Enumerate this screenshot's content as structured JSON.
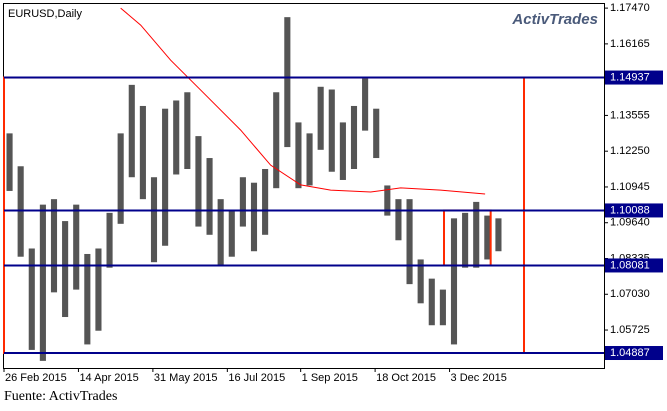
{
  "chart_data": {
    "type": "ohlc",
    "title": "EURUSD,Daily",
    "logo": "ActivTrades",
    "source": "Fuente: ActivTrades",
    "xlim": [
      0,
      54
    ],
    "ylim": [
      1.0434,
      1.1762
    ],
    "xticks": [
      {
        "value": 0,
        "label": "26 Feb 2015"
      },
      {
        "value": 6.7,
        "label": "14 Apr 2015"
      },
      {
        "value": 13.4,
        "label": "31 May 2015"
      },
      {
        "value": 20.1,
        "label": "16 Jul 2015"
      },
      {
        "value": 26.7,
        "label": "1 Sep 2015"
      },
      {
        "value": 33.4,
        "label": "18 Oct 2015"
      },
      {
        "value": 40.1,
        "label": "3 Dec 2015"
      }
    ],
    "yticks": [
      {
        "value": 1.1747,
        "label": "1.17470"
      },
      1.16165,
      1.13555,
      {
        "value": 1.1225,
        "label": "1.12250"
      },
      1.10945,
      {
        "value": 1.0964,
        "label": "1.09640"
      },
      1.08335,
      {
        "value": 1.0703,
        "label": "1.07030"
      },
      1.05725
    ],
    "bars": {
      "color": "#555555",
      "high": [
        1.129,
        1.117,
        1.087,
        1.103,
        1.105,
        1.097,
        1.103,
        1.085,
        1.087,
        1.1,
        1.129,
        1.1467,
        1.139,
        1.113,
        1.138,
        1.141,
        1.144,
        1.128,
        1.12,
        1.105,
        1.101,
        1.113,
        1.111,
        1.116,
        1.144,
        1.1714,
        1.133,
        1.129,
        1.146,
        1.145,
        1.133,
        1.139,
        1.149,
        1.138,
        1.11,
        1.105,
        1.105,
        1.083,
        1.076,
        1.072,
        1.098,
        1.1,
        1.104,
        1.099,
        1.098
      ],
      "low": [
        1.108,
        1.084,
        1.05,
        1.046,
        1.071,
        1.062,
        1.072,
        1.052,
        1.057,
        1.08,
        1.096,
        1.113,
        1.105,
        1.082,
        1.088,
        1.114,
        1.116,
        1.095,
        1.092,
        1.081,
        1.084,
        1.095,
        1.086,
        1.092,
        1.109,
        1.124,
        1.109,
        1.11,
        1.123,
        1.115,
        1.112,
        1.116,
        1.13,
        1.12,
        1.099,
        1.09,
        1.074,
        1.067,
        1.059,
        1.059,
        1.052,
        1.08,
        1.08,
        1.083,
        1.086
      ]
    },
    "moving_average": {
      "color": "#ff0000",
      "x": [
        10.5,
        12.3,
        15.0,
        17.7,
        21.3,
        24.0,
        26.7,
        29.4,
        33.0,
        35.7,
        39.3,
        43.3
      ],
      "values": [
        1.1747,
        1.1685,
        1.1557,
        1.1448,
        1.1302,
        1.1174,
        1.1102,
        1.1083,
        1.1076,
        1.1091,
        1.1083,
        1.1069
      ]
    },
    "levels": {
      "color": "#00008b",
      "values": [
        1.14937,
        1.10088,
        1.08081,
        1.04887
      ]
    },
    "boxes": [
      {
        "color": "#ff2a00",
        "x": [
          0,
          46.8
        ],
        "y": [
          1.04887,
          1.14937
        ]
      },
      {
        "color": "#ff2a00",
        "x": [
          39.6,
          43.8
        ],
        "y": [
          1.08081,
          1.10088
        ]
      }
    ]
  }
}
